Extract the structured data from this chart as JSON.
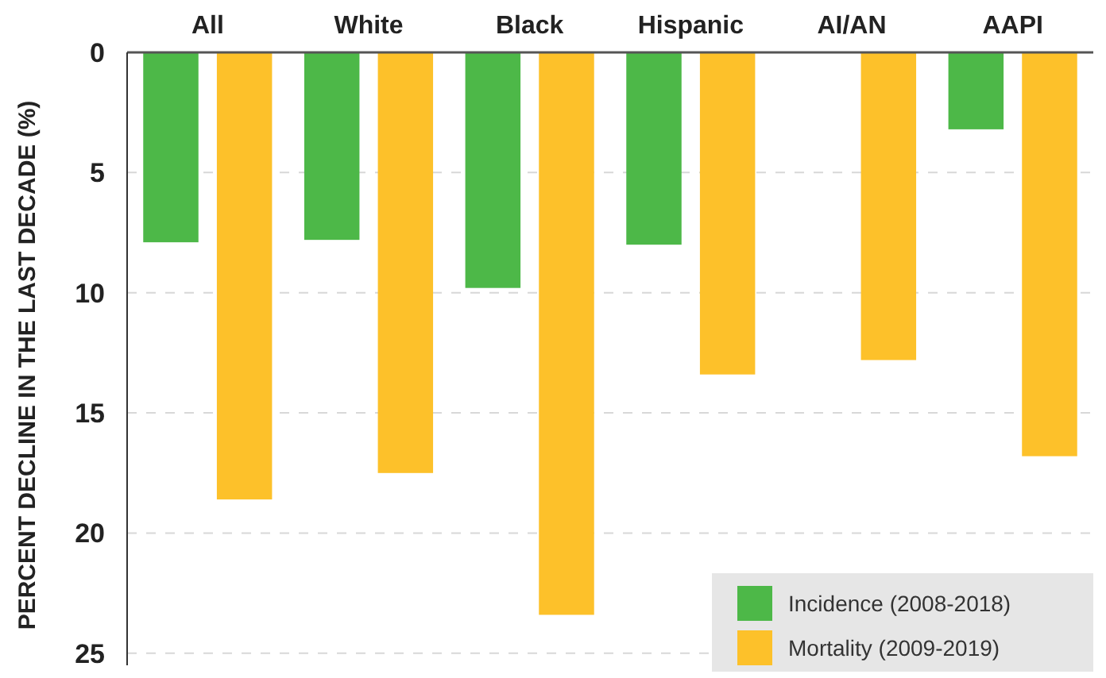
{
  "chart_data": {
    "type": "bar",
    "ylabel": "PERCENT DECLINE IN THE LAST DECADE (%)",
    "categories": [
      "All",
      "White",
      "Black",
      "Hispanic",
      "AI/AN",
      "AAPI"
    ],
    "series": [
      {
        "name": "Incidence (2008-2018)",
        "color": "#4db848",
        "values": [
          7.9,
          7.8,
          9.8,
          8.0,
          null,
          3.2
        ]
      },
      {
        "name": "Mortality (2009-2019)",
        "color": "#fdc12a",
        "values": [
          18.6,
          17.5,
          23.4,
          13.4,
          12.8,
          16.8
        ]
      }
    ],
    "ylim": [
      25.5,
      0
    ],
    "yticks": [
      0,
      5,
      10,
      15,
      20,
      25
    ],
    "grid": "y",
    "legend": "bottom right"
  }
}
